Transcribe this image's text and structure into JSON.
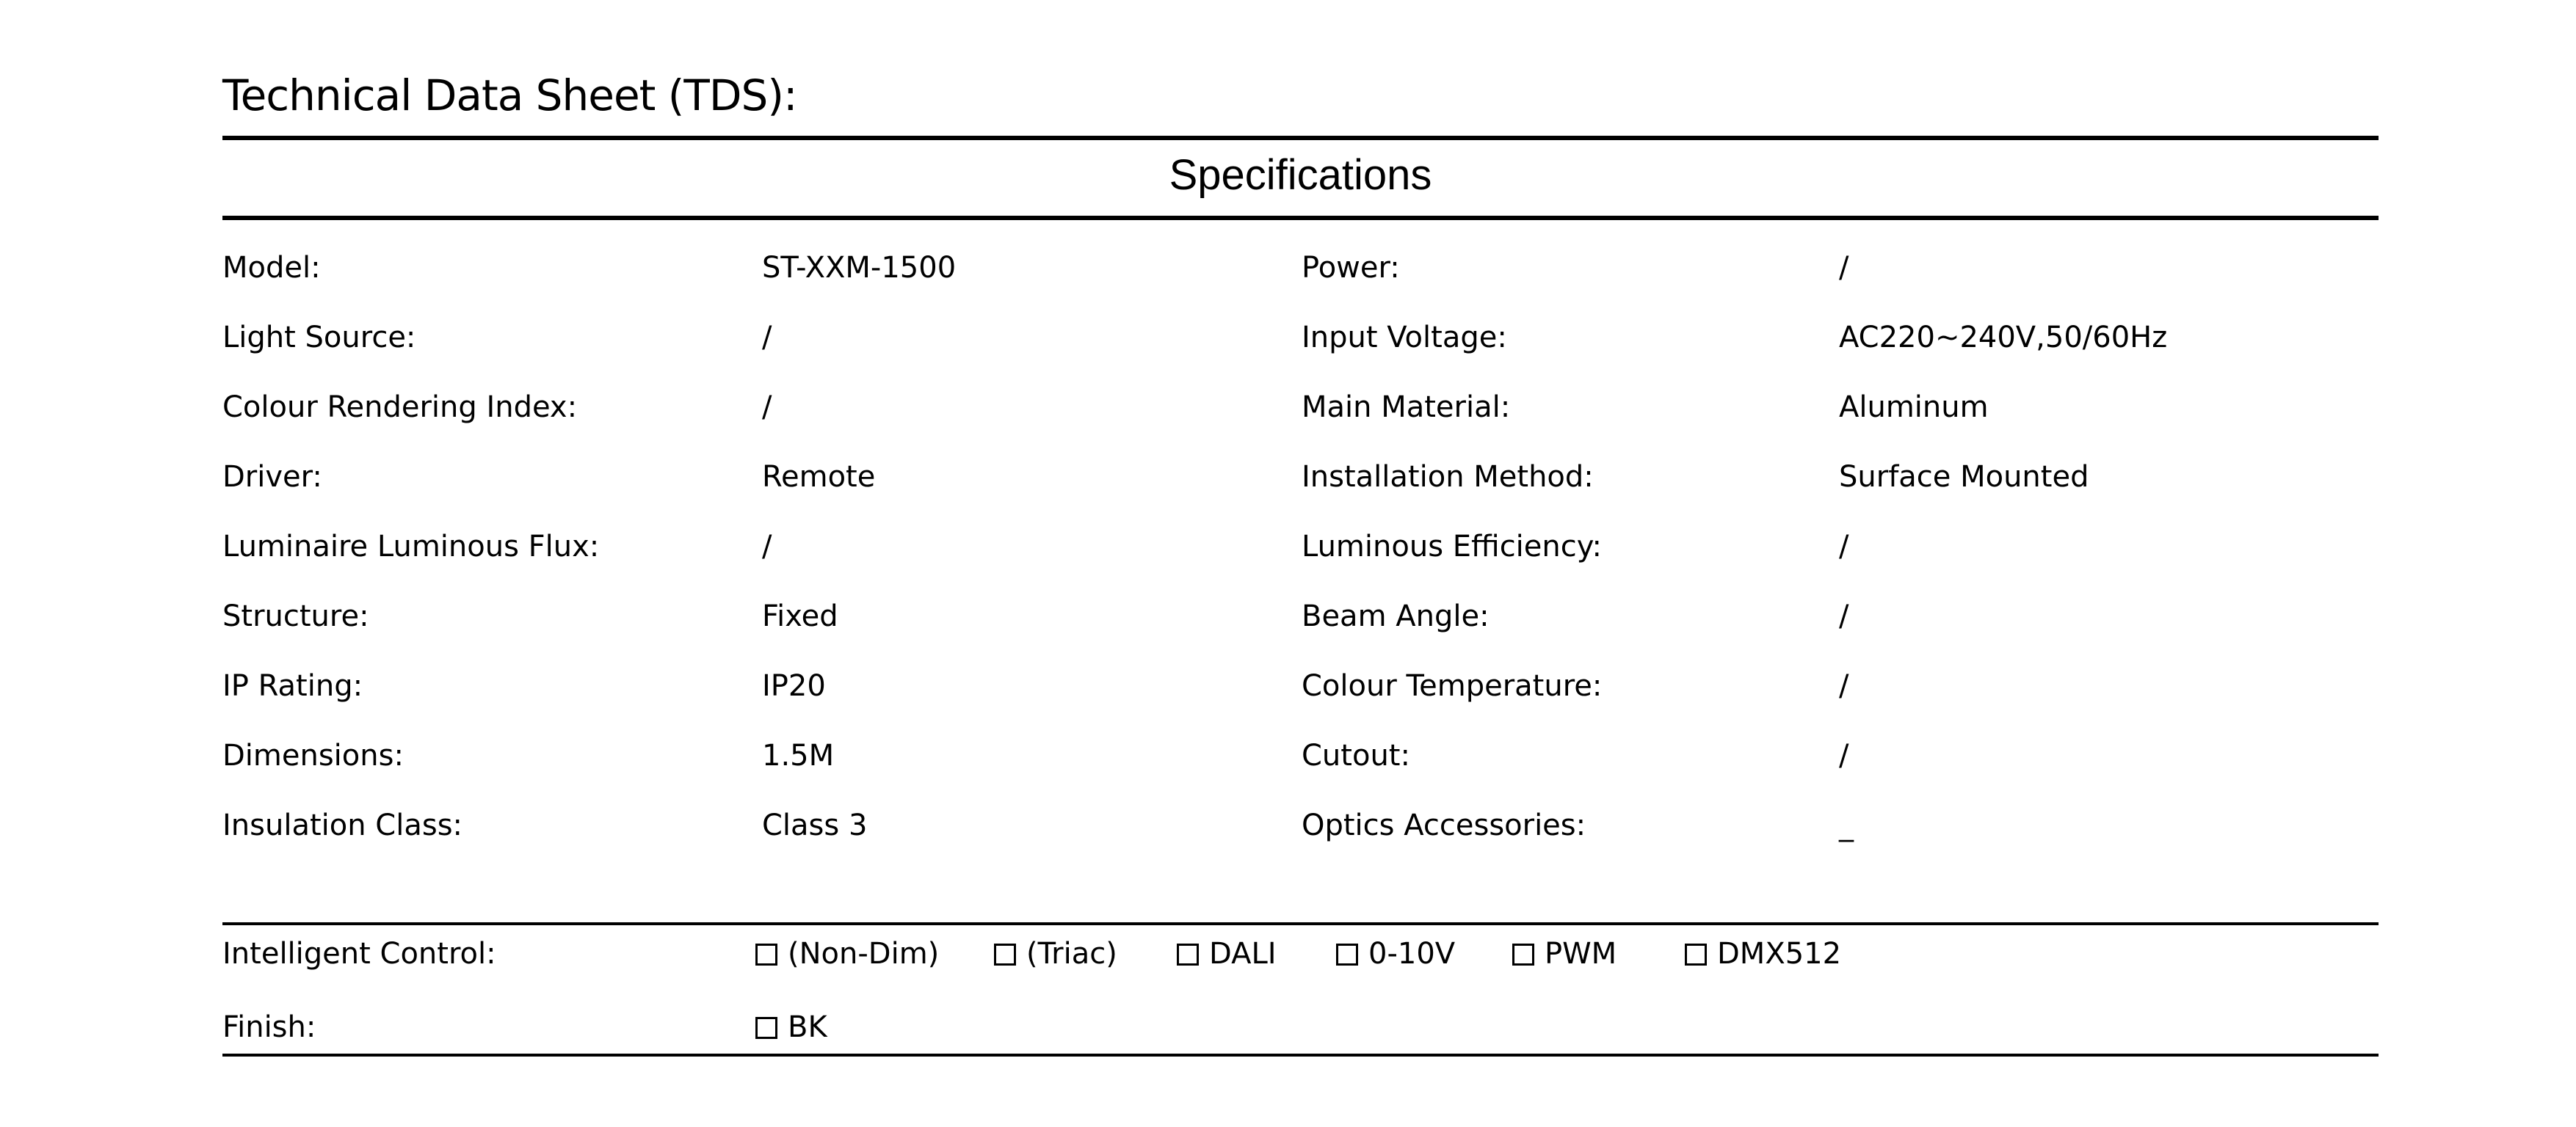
{
  "title": "Technical Data Sheet (TDS):",
  "section_title": "Specifications",
  "left_specs": [
    {
      "label": "Model:",
      "value": "ST-XXM-1500"
    },
    {
      "label": "Light Source:",
      "value": "/"
    },
    {
      "label": "Colour Rendering Index:",
      "value": "/"
    },
    {
      "label": "Driver:",
      "value": "Remote"
    },
    {
      "label": "Luminaire Luminous Flux:",
      "value": "/"
    },
    {
      "label": "Structure:",
      "value": "Fixed"
    },
    {
      "label": "IP Rating:",
      "value": "IP20"
    },
    {
      "label": "Dimensions:",
      "value": "1.5M"
    },
    {
      "label": "Insulation Class:",
      "value": "Class 3"
    }
  ],
  "right_specs": [
    {
      "label": "Power:",
      "value": "/"
    },
    {
      "label": "Input Voltage:",
      "value": "AC220~240V,50/60Hz"
    },
    {
      "label": "Main Material:",
      "value": "Aluminum"
    },
    {
      "label": "Installation Method:",
      "value": "Surface Mounted"
    },
    {
      "label": "Luminous Efficiency:",
      "value": "/"
    },
    {
      "label": "Beam Angle:",
      "value": "/"
    },
    {
      "label": "Colour Temperature:",
      "value": "/"
    },
    {
      "label": "Cutout:",
      "value": "/"
    },
    {
      "label": "Optics Accessories:",
      "value": "_"
    }
  ],
  "intelligent_control": {
    "label": "Intelligent Control:",
    "options": [
      {
        "label": "(Non-Dim)",
        "checked": false
      },
      {
        "label": "(Triac)",
        "checked": false
      },
      {
        "label": "DALI",
        "checked": false
      },
      {
        "label": "0-10V",
        "checked": false
      },
      {
        "label": "PWM",
        "checked": false
      },
      {
        "label": "DMX512",
        "checked": false
      }
    ]
  },
  "finish": {
    "label": "Finish:",
    "options": [
      {
        "label": "BK",
        "checked": false
      }
    ]
  }
}
